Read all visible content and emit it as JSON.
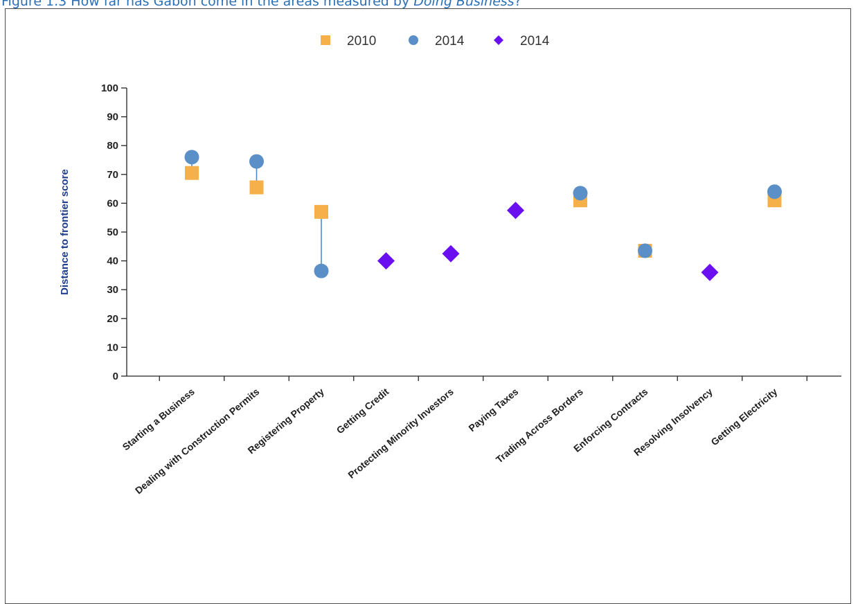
{
  "caption": {
    "prefix": "Figure 1.3 How far has Gabon come in the areas measured by ",
    "emphasis": "Doing Business",
    "suffix": "?"
  },
  "colors": {
    "series_2010": "#f5b04a",
    "series_2014_circle": "#5b8fc7",
    "series_2014_diamond": "#6a0ff0",
    "connector": "#4a8ad0",
    "axis": "#222222",
    "axis_title": "#1f3f8a",
    "caption": "#2b6fb5"
  },
  "chart_data": {
    "type": "scatter",
    "title": "",
    "xlabel": "",
    "ylabel": "Distance to frontier score",
    "ylim": [
      0,
      100
    ],
    "yticks": [
      0,
      10,
      20,
      30,
      40,
      50,
      60,
      70,
      80,
      90,
      100
    ],
    "grid": false,
    "legend_position": "top-center",
    "categories": [
      "Starting a Business",
      "Dealing with Construction Permits",
      "Registering Property",
      "Getting Credit",
      "Protecting Minority Investors",
      "Paying Taxes",
      "Trading Across Borders",
      "Enforcing Contracts",
      "Resolving Insolvency",
      "Getting Electricity"
    ],
    "series": [
      {
        "name": "2010",
        "marker": "square",
        "color": "#f5b04a",
        "values": [
          70.5,
          65.5,
          57,
          null,
          null,
          null,
          61,
          43.5,
          null,
          61
        ]
      },
      {
        "name": "2014",
        "marker": "circle",
        "color": "#5b8fc7",
        "values": [
          76,
          74.5,
          36.5,
          null,
          null,
          null,
          63.5,
          43.5,
          null,
          64
        ]
      },
      {
        "name": "2014",
        "marker": "diamond",
        "color": "#6a0ff0",
        "values": [
          null,
          null,
          null,
          40,
          42.5,
          57.5,
          null,
          null,
          36,
          null
        ]
      }
    ]
  }
}
